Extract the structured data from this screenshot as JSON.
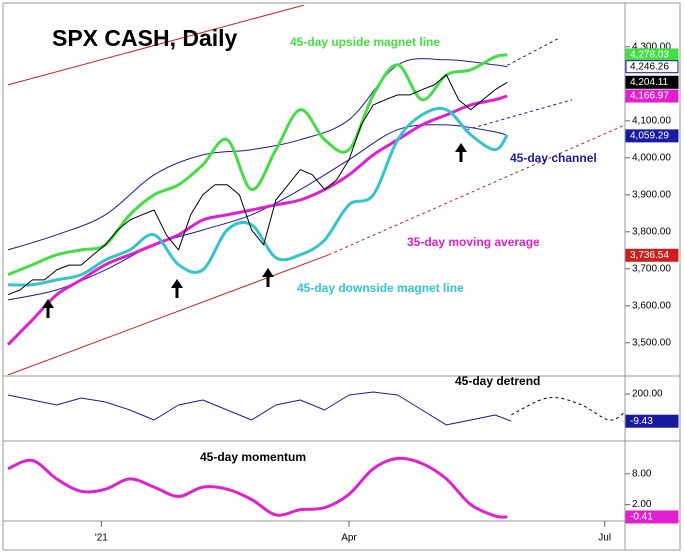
{
  "chart_data": [
    {
      "type": "line",
      "title": "SPX CASH, Daily",
      "xlim": [
        0,
        152
      ],
      "ylim": [
        3413,
        4413
      ],
      "yticks": [
        {
          "value": 3500,
          "label": "3,500.00"
        },
        {
          "value": 3600,
          "label": "3,600.00"
        },
        {
          "value": 3700,
          "label": "3,700.00"
        },
        {
          "value": 3800,
          "label": "3,800.00"
        },
        {
          "value": 3900,
          "label": "3,900.00"
        },
        {
          "value": 4000,
          "label": "4,000.00"
        },
        {
          "value": 4100,
          "label": "4,100.00"
        },
        {
          "value": 4200,
          "label": "4,200.00"
        },
        {
          "value": 4300,
          "label": "4,300.00"
        }
      ],
      "series": [
        {
          "color": "#cc2020",
          "width": 1,
          "x": [
            0,
            73
          ],
          "values": [
            4197,
            4413
          ]
        },
        {
          "color": "#cc2020",
          "width": 1,
          "x": [
            0,
            79
          ],
          "values": [
            3413,
            3738
          ]
        },
        {
          "color": "#cc2020",
          "width": 1,
          "dash": true,
          "x": [
            79,
            152
          ],
          "values": [
            3738,
            4089
          ]
        },
        {
          "color": "#1a1aa0",
          "width": 1,
          "smooth": true,
          "x": [
            0,
            12,
            24,
            36,
            48,
            60,
            72,
            84,
            96,
            108,
            120,
            123
          ],
          "values": [
            3751,
            3792,
            3846,
            3954,
            4008,
            4022,
            4049,
            4103,
            4251,
            4265,
            4251,
            4246.26
          ]
        },
        {
          "name": "45-day channel",
          "color": "#1a1aa0",
          "width": 1,
          "smooth": true,
          "x": [
            0,
            12,
            24,
            36,
            48,
            60,
            72,
            84,
            96,
            108,
            120,
            123
          ],
          "values": [
            3616,
            3643,
            3697,
            3765,
            3805,
            3846,
            3914,
            3995,
            4076,
            4089,
            4070,
            4059.29
          ]
        },
        {
          "color": "#1a1aa0",
          "width": 1,
          "dash": true,
          "x": [
            123,
            136
          ],
          "values": [
            4250,
            4325
          ]
        },
        {
          "color": "#1a1aa0",
          "width": 1,
          "dash": true,
          "x": [
            113,
            139
          ],
          "values": [
            4076,
            4157
          ]
        },
        {
          "name": "35-day moving average",
          "color": "#e020d0",
          "width": 3,
          "smooth": true,
          "x": [
            0,
            6,
            12,
            18,
            24,
            30,
            36,
            42,
            48,
            54,
            60,
            66,
            72,
            78,
            84,
            90,
            96,
            102,
            108,
            114,
            120,
            123
          ],
          "values": [
            3495,
            3562,
            3630,
            3670,
            3711,
            3738,
            3765,
            3792,
            3832,
            3846,
            3859,
            3873,
            3886,
            3914,
            3954,
            4008,
            4049,
            4089,
            4116,
            4143,
            4157,
            4166.97
          ]
        },
        {
          "name": "45-day downside magnet line",
          "color": "#33c4cc",
          "width": 3,
          "smooth": true,
          "x": [
            0,
            6,
            12,
            18,
            24,
            30,
            36,
            42,
            48,
            54,
            60,
            66,
            72,
            78,
            84,
            90,
            96,
            102,
            108,
            114,
            120,
            123
          ],
          "values": [
            3657,
            3657,
            3670,
            3684,
            3724,
            3751,
            3792,
            3711,
            3697,
            3805,
            3819,
            3730,
            3738,
            3778,
            3873,
            3900,
            4049,
            4116,
            4130,
            4062,
            4022,
            4062
          ]
        },
        {
          "name": "45-day upside magnet line",
          "color": "#44dd44",
          "width": 3,
          "smooth": true,
          "x": [
            0,
            6,
            12,
            18,
            24,
            30,
            36,
            42,
            48,
            54,
            60,
            66,
            72,
            78,
            84,
            90,
            96,
            102,
            108,
            114,
            120,
            123
          ],
          "values": [
            3684,
            3711,
            3738,
            3751,
            3765,
            3846,
            3900,
            3927,
            3981,
            4049,
            3914,
            4022,
            4130,
            4049,
            4022,
            4170,
            4251,
            4157,
            4224,
            4238,
            4273,
            4278.03
          ]
        },
        {
          "color": "#000000",
          "width": 1,
          "x": [
            0,
            3,
            6,
            9,
            12,
            15,
            18,
            21,
            24,
            27,
            30,
            33,
            36,
            39,
            42,
            45,
            48,
            51,
            54,
            57,
            60,
            63,
            66,
            69,
            72,
            75,
            78,
            81,
            84,
            87,
            90,
            93,
            96,
            99,
            102,
            105,
            108,
            111,
            114,
            117,
            120,
            123
          ],
          "values": [
            3630,
            3643,
            3670,
            3670,
            3697,
            3710,
            3710,
            3738,
            3765,
            3805,
            3832,
            3846,
            3859,
            3792,
            3751,
            3846,
            3900,
            3927,
            3927,
            3900,
            3805,
            3765,
            3886,
            3927,
            3968,
            3954,
            3914,
            3941,
            3995,
            4089,
            4143,
            4157,
            4170,
            4170,
            4184,
            4197,
            4224,
            4157,
            4130,
            4157,
            4184,
            4204.11
          ]
        }
      ],
      "axis_labels": [
        {
          "value": 4278.03,
          "label": "4,278.03",
          "color": "#44dd44"
        },
        {
          "value": 4246.26,
          "label": "4,246.26",
          "color": "#ffffff"
        },
        {
          "value": 4204.11,
          "label": "4,204.11",
          "color": "#000000"
        },
        {
          "value": 4166.97,
          "label": "4,166.97",
          "color": "#e020d0"
        },
        {
          "value": 4059.29,
          "label": "4,059.29",
          "color": "#1a1aa0"
        },
        {
          "value": 3736.54,
          "label": "3,736.54",
          "color": "#cc2020"
        }
      ]
    },
    {
      "type": "line",
      "title": "45-day detrend",
      "xlim": [
        0,
        152
      ],
      "ylim": [
        -154,
        323
      ],
      "yticks": [
        {
          "value": 200,
          "label": "200.00"
        }
      ],
      "series": [
        {
          "color": "#1a1aa0",
          "width": 1,
          "x": [
            0,
            6,
            12,
            18,
            24,
            30,
            36,
            42,
            48,
            54,
            60,
            66,
            72,
            78,
            84,
            90,
            96,
            102,
            108,
            114,
            120,
            124
          ],
          "values": [
            192,
            154,
            115,
            169,
            138,
            77,
            0,
            115,
            154,
            77,
            0,
            115,
            154,
            77,
            192,
            215,
            192,
            77,
            -38,
            0,
            38,
            -9.43
          ]
        },
        {
          "color": "#000000",
          "width": 1,
          "dash": true,
          "smooth": true,
          "x": [
            124,
            133,
            141,
            148,
            152
          ],
          "values": [
            40,
            170,
            120,
            0,
            60
          ]
        }
      ],
      "axis_labels": [
        {
          "value": -9.43,
          "label": "-9.43",
          "color": "#1a1aa0"
        }
      ]
    },
    {
      "type": "line",
      "title": "45-day momentum",
      "xlim": [
        0,
        152
      ],
      "ylim": [
        -1,
        14
      ],
      "xticks": [
        {
          "value": 23,
          "label": "'21"
        },
        {
          "value": 84,
          "label": "Apr"
        },
        {
          "value": 147,
          "label": "Jul"
        }
      ],
      "yticks": [
        {
          "value": 8,
          "label": "8.00"
        },
        {
          "value": 2,
          "label": "2.00"
        }
      ],
      "series": [
        {
          "color": "#e020d0",
          "width": 3,
          "smooth": true,
          "x": [
            0,
            6,
            12,
            18,
            24,
            30,
            36,
            42,
            48,
            54,
            60,
            66,
            72,
            78,
            84,
            90,
            96,
            102,
            108,
            114,
            120,
            123
          ],
          "values": [
            9,
            10.6,
            7,
            4.6,
            5,
            7,
            5.4,
            3.6,
            5.4,
            5,
            3,
            0,
            1,
            1.4,
            4,
            9,
            11,
            10,
            7,
            2,
            -0.2,
            -0.41
          ]
        }
      ],
      "axis_labels": [
        {
          "value": -0.41,
          "label": "-0.41",
          "color": "#e020d0"
        }
      ]
    }
  ]
}
